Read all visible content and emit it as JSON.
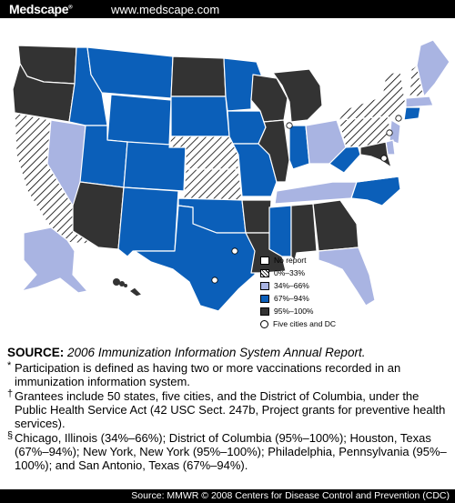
{
  "header": {
    "brand": "Medscape",
    "brand_mark": "®",
    "site": "www.medscape.com"
  },
  "colors": {
    "no_report": "#ffffff",
    "c34_66": "#a9b4e2",
    "c67_94": "#0b5fb9",
    "c95_100": "#333333",
    "hatch": "#000000"
  },
  "legend": {
    "items": [
      {
        "key": "no_report",
        "label": "No report"
      },
      {
        "key": "c0_33",
        "label": "0%–33%"
      },
      {
        "key": "c34_66",
        "label": "34%–66%"
      },
      {
        "key": "c67_94",
        "label": "67%–94%"
      },
      {
        "key": "c95_100",
        "label": "95%–100%"
      },
      {
        "key": "cities",
        "label": "Five cities and DC"
      }
    ]
  },
  "states": [
    {
      "state": "WA",
      "category": "c95_100"
    },
    {
      "state": "OR",
      "category": "c95_100"
    },
    {
      "state": "CA",
      "category": "c0_33"
    },
    {
      "state": "NV",
      "category": "c34_66"
    },
    {
      "state": "ID",
      "category": "c67_94"
    },
    {
      "state": "MT",
      "category": "c67_94"
    },
    {
      "state": "WY",
      "category": "c67_94"
    },
    {
      "state": "UT",
      "category": "c67_94"
    },
    {
      "state": "AZ",
      "category": "c95_100"
    },
    {
      "state": "CO",
      "category": "c67_94"
    },
    {
      "state": "NM",
      "category": "c67_94"
    },
    {
      "state": "ND",
      "category": "c95_100"
    },
    {
      "state": "SD",
      "category": "c67_94"
    },
    {
      "state": "NE",
      "category": "c0_33"
    },
    {
      "state": "KS",
      "category": "c0_33"
    },
    {
      "state": "OK",
      "category": "c67_94"
    },
    {
      "state": "TX",
      "category": "c67_94"
    },
    {
      "state": "MN",
      "category": "c67_94"
    },
    {
      "state": "IA",
      "category": "c67_94"
    },
    {
      "state": "MO",
      "category": "c67_94"
    },
    {
      "state": "AR",
      "category": "c95_100"
    },
    {
      "state": "LA",
      "category": "c95_100"
    },
    {
      "state": "WI",
      "category": "c95_100"
    },
    {
      "state": "IL",
      "category": "c95_100"
    },
    {
      "state": "MI",
      "category": "c95_100"
    },
    {
      "state": "IN",
      "category": "c67_94"
    },
    {
      "state": "OH",
      "category": "c34_66"
    },
    {
      "state": "KY",
      "category": "no_report"
    },
    {
      "state": "TN",
      "category": "c34_66"
    },
    {
      "state": "MS",
      "category": "c67_94"
    },
    {
      "state": "AL",
      "category": "c95_100"
    },
    {
      "state": "GA",
      "category": "c95_100"
    },
    {
      "state": "FL",
      "category": "c34_66"
    },
    {
      "state": "SC",
      "category": "no_report"
    },
    {
      "state": "NC",
      "category": "c67_94"
    },
    {
      "state": "VA",
      "category": "no_report"
    },
    {
      "state": "WV",
      "category": "c67_94"
    },
    {
      "state": "PA",
      "category": "c0_33"
    },
    {
      "state": "NY",
      "category": "c0_33"
    },
    {
      "state": "VT",
      "category": "no_report"
    },
    {
      "state": "NH",
      "category": "c0_33"
    },
    {
      "state": "ME",
      "category": "c34_66"
    },
    {
      "state": "MA",
      "category": "c34_66"
    },
    {
      "state": "CT",
      "category": "c67_94"
    },
    {
      "state": "NJ",
      "category": "c34_66"
    },
    {
      "state": "DE",
      "category": "c34_66"
    },
    {
      "state": "MD",
      "category": "c95_100"
    },
    {
      "state": "AK",
      "category": "c34_66"
    },
    {
      "state": "HI",
      "category": "c95_100"
    }
  ],
  "notes": {
    "source_label": "SOURCE:",
    "source_text": "2006 Immunization Information System Annual Report.",
    "star_mark": "*",
    "star_text": "Participation is defined as having two or more vaccinations recorded in an immunization information system.",
    "dagger_mark": "†",
    "dagger_text": "Grantees include 50 states, five cities, and the District of Columbia, under the Public Health Service Act (42 USC Sect. 247b, Project grants for preventive health services).",
    "section_mark": "§",
    "section_text": "Chicago, Illinois (34%–66%); District of Columbia (95%–100%); Houston, Texas (67%–94%); New York, New York (95%–100%); Philadelphia, Pennsylvania (95%–100%); and San Antonio, Texas (67%–94%)."
  },
  "footer": {
    "text": "Source: MMWR © 2008 Centers for Disease Control and Prevention (CDC)"
  }
}
